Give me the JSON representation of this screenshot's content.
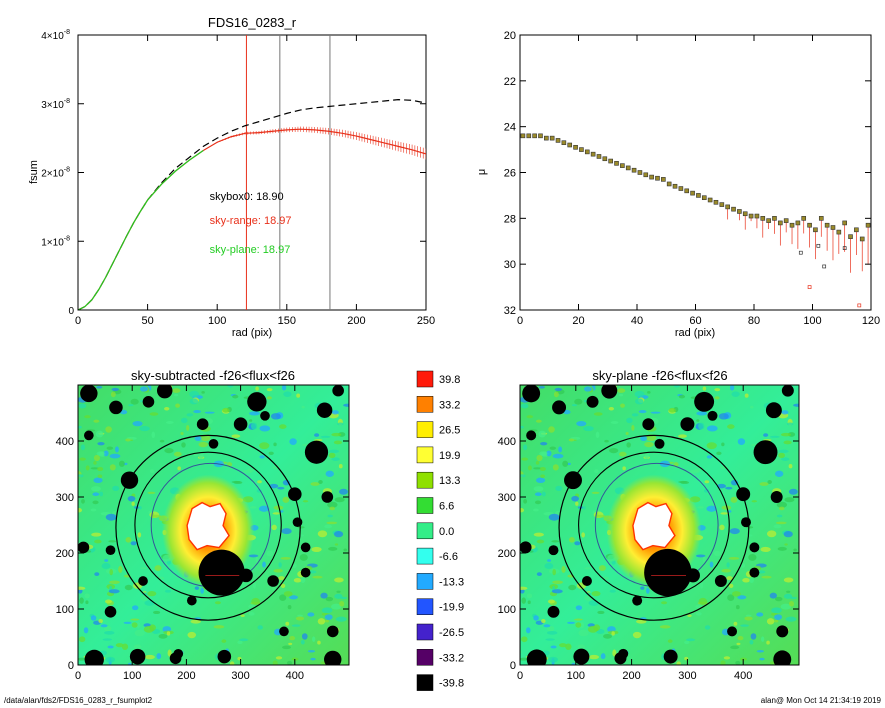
{
  "colors": {
    "model": "#000000",
    "range": "#e8301a",
    "plane": "#22cc22",
    "marker_box": "#333333",
    "vline_red": "#e8301a",
    "vline_gray": "#777777"
  },
  "footer": {
    "left": "/data/alan/fds2/FDS16_0283_r_fsumplot2",
    "right": "alan@  Mon Oct 14 21:34:19 2019"
  },
  "chart_data": [
    {
      "id": "fsum",
      "type": "line",
      "title": "FDS16_0283_r",
      "xlabel": "rad (pix)",
      "ylabel": "fsum",
      "xlim": [
        0,
        250
      ],
      "ylim": [
        0,
        4e-08
      ],
      "xticks": [
        "0",
        "50",
        "100",
        "150",
        "200",
        "250"
      ],
      "yticks": [
        {
          "v": 0,
          "m": "0",
          "e": ""
        },
        {
          "v": 1e-08,
          "m": "1×10",
          "e": "-8"
        },
        {
          "v": 2e-08,
          "m": "2×10",
          "e": "-8"
        },
        {
          "v": 3e-08,
          "m": "3×10",
          "e": "-8"
        },
        {
          "v": 4e-08,
          "m": "4×10",
          "e": "-8"
        }
      ],
      "vlines": [
        {
          "x": 121,
          "color": "red"
        },
        {
          "x": 145,
          "color": "gray"
        },
        {
          "x": 181,
          "color": "gray"
        }
      ],
      "annotations": [
        {
          "text": "skybox0: 18.90",
          "color": "black",
          "x": 73,
          "y": 1.6e-08
        },
        {
          "text": "sky-range: 18.97",
          "color": "red",
          "x": 73,
          "y": 1.25e-08
        },
        {
          "text": "sky-plane: 18.97",
          "color": "green",
          "x": 73,
          "y": 8.3e-09
        }
      ],
      "series": [
        {
          "style": "dashed",
          "color": "black",
          "x": [
            0,
            5,
            10,
            15,
            20,
            25,
            30,
            35,
            40,
            45,
            50,
            60,
            70,
            80,
            90,
            100,
            110,
            120,
            130,
            140,
            150,
            160,
            170,
            180,
            190,
            200,
            210,
            220,
            230,
            240,
            250
          ],
          "y": [
            0,
            5e-10,
            1.5e-09,
            3e-09,
            4.8e-09,
            6.8e-09,
            8.8e-09,
            1.08e-08,
            1.27e-08,
            1.44e-08,
            1.6e-08,
            1.85e-08,
            2.06e-08,
            2.22e-08,
            2.38e-08,
            2.5e-08,
            2.6e-08,
            2.68e-08,
            2.74e-08,
            2.8e-08,
            2.86e-08,
            2.91e-08,
            2.94e-08,
            2.96e-08,
            2.98e-08,
            3e-08,
            3.02e-08,
            3.04e-08,
            3.06e-08,
            3.05e-08,
            3.01e-08
          ]
        },
        {
          "style": "solid",
          "color": "red",
          "x": [
            0,
            5,
            10,
            15,
            20,
            25,
            30,
            35,
            40,
            45,
            50,
            60,
            70,
            80,
            90,
            100,
            110,
            120,
            130,
            140,
            150,
            160,
            170,
            180,
            190,
            200,
            210,
            220,
            230,
            240,
            250
          ],
          "y": [
            0,
            5e-10,
            1.5e-09,
            3e-09,
            4.8e-09,
            6.8e-09,
            8.8e-09,
            1.08e-08,
            1.27e-08,
            1.44e-08,
            1.6e-08,
            1.83e-08,
            2.02e-08,
            2.18e-08,
            2.32e-08,
            2.44e-08,
            2.52e-08,
            2.57e-08,
            2.58e-08,
            2.6e-08,
            2.62e-08,
            2.63e-08,
            2.62e-08,
            2.6e-08,
            2.57e-08,
            2.53e-08,
            2.48e-08,
            2.43e-08,
            2.38e-08,
            2.33e-08,
            2.27e-08
          ]
        },
        {
          "style": "solid",
          "color": "green",
          "x": [
            0,
            5,
            10,
            15,
            20,
            25,
            30,
            35,
            40,
            45,
            50,
            60,
            70,
            80,
            90
          ],
          "y": [
            0,
            5e-10,
            1.5e-09,
            3e-09,
            4.8e-09,
            6.8e-09,
            8.8e-09,
            1.08e-08,
            1.27e-08,
            1.44e-08,
            1.6e-08,
            1.83e-08,
            2.02e-08,
            2.18e-08,
            2.32e-08
          ]
        }
      ]
    },
    {
      "id": "mu",
      "type": "scatter",
      "xlabel": "rad (pix)",
      "ylabel": "μ",
      "xlim": [
        0,
        120
      ],
      "ylim": [
        32,
        20
      ],
      "xticks": [
        "0",
        "20",
        "40",
        "60",
        "80",
        "100",
        "120"
      ],
      "yticks": [
        "20",
        "22",
        "24",
        "26",
        "28",
        "30",
        "32"
      ],
      "series": [
        {
          "name": "points",
          "x": [
            1,
            3,
            5,
            7,
            9,
            11,
            13,
            15,
            17,
            19,
            21,
            23,
            25,
            27,
            29,
            31,
            33,
            35,
            37,
            39,
            41,
            43,
            45,
            47,
            49,
            51,
            53,
            55,
            57,
            59,
            61,
            63,
            65,
            67,
            69,
            71,
            73,
            75,
            77,
            79,
            81,
            83,
            85,
            87,
            89,
            91,
            93,
            95,
            97,
            99,
            101,
            103,
            105,
            107,
            109,
            111,
            113,
            115,
            117,
            119
          ],
          "y": [
            24.4,
            24.4,
            24.4,
            24.4,
            24.5,
            24.5,
            24.6,
            24.7,
            24.8,
            24.9,
            25.0,
            25.1,
            25.2,
            25.3,
            25.4,
            25.5,
            25.6,
            25.7,
            25.8,
            25.9,
            26.0,
            26.1,
            26.2,
            26.25,
            26.3,
            26.5,
            26.6,
            26.7,
            26.8,
            26.9,
            27.0,
            27.1,
            27.2,
            27.3,
            27.4,
            27.5,
            27.6,
            27.7,
            27.8,
            27.9,
            27.9,
            28.0,
            28.1,
            28.0,
            28.2,
            28.1,
            28.3,
            28.2,
            28.0,
            28.3,
            28.5,
            28.0,
            28.3,
            28.4,
            28.6,
            28.2,
            28.8,
            28.5,
            28.9,
            28.3
          ]
        },
        {
          "name": "outliers",
          "x": [
            96,
            99,
            102,
            104,
            111,
            116
          ],
          "y": [
            29.5,
            31.0,
            29.2,
            30.1,
            29.3,
            31.8
          ]
        }
      ]
    },
    {
      "id": "img1",
      "type": "heatmap",
      "title": "sky-subtracted -f26<flux<f26",
      "xlim": [
        0,
        500
      ],
      "ylim": [
        0,
        500
      ],
      "xticks": [
        "0",
        "100",
        "200",
        "300",
        "400"
      ],
      "yticks": [
        "0",
        "100",
        "200",
        "300",
        "400"
      ]
    },
    {
      "id": "img2",
      "type": "heatmap",
      "title": "sky-plane -f26<flux<f26",
      "xlim": [
        0,
        500
      ],
      "ylim": [
        0,
        500
      ],
      "xticks": [
        "0",
        "100",
        "200",
        "300",
        "400"
      ],
      "yticks": [
        "0",
        "100",
        "200",
        "300",
        "400"
      ]
    },
    {
      "id": "colorbar",
      "type": "heatmap",
      "levels": [
        "39.8",
        "33.2",
        "26.5",
        "19.9",
        "13.3",
        "6.6",
        "0.0",
        "-6.6",
        "-13.3",
        "-19.9",
        "-26.5",
        "-33.2",
        "-39.8"
      ],
      "colors": [
        "#ff1a0a",
        "#ff8000",
        "#ffee00",
        "#ffff33",
        "#8fe000",
        "#33dd33",
        "#33ee88",
        "#33ffee",
        "#22aaff",
        "#2255ff",
        "#4422cc",
        "#550066",
        "#000000"
      ]
    }
  ]
}
